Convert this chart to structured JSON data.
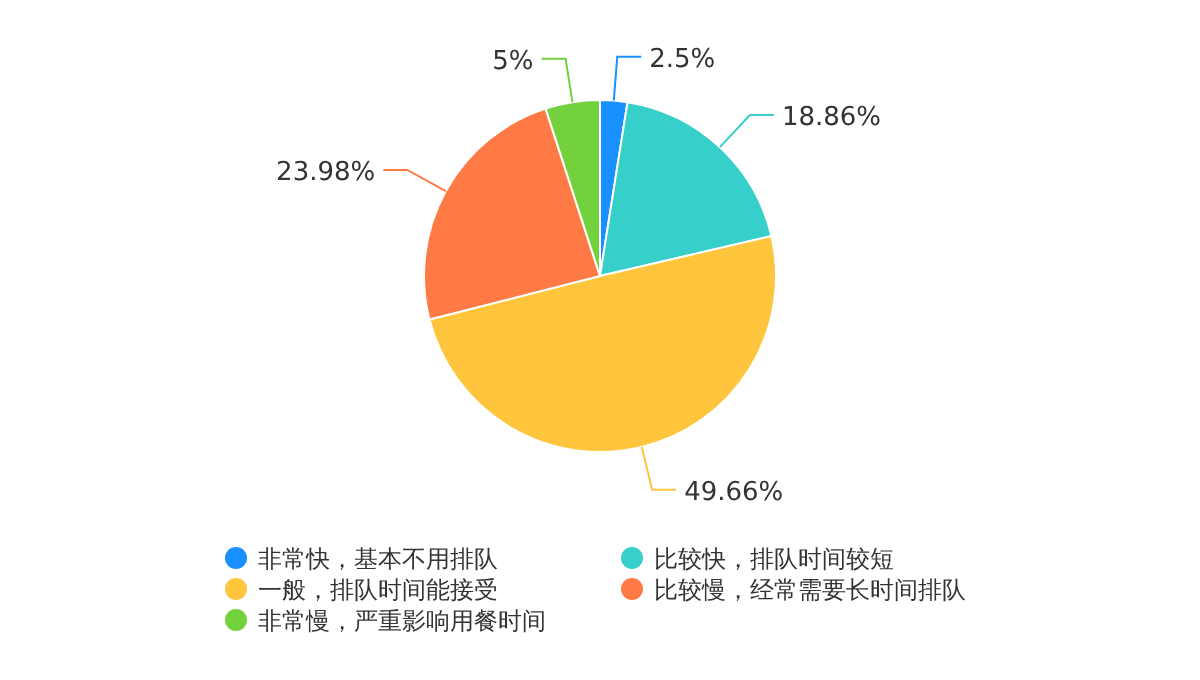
{
  "chart_data": {
    "type": "pie",
    "categories": [
      "非常快，基本不用排队",
      "比较快，排队时间较短",
      "一般，排队时间能接受",
      "比较慢，经常需要长时间排队",
      "非常慢，严重影响用餐时间"
    ],
    "values": [
      2.5,
      18.86,
      49.66,
      23.98,
      5
    ],
    "value_labels": [
      "2.5%",
      "18.86%",
      "49.66%",
      "23.98%",
      "5%"
    ],
    "colors": [
      "#1890ff",
      "#36cfc9",
      "#ffc53d",
      "#ff7a45",
      "#73d13d"
    ],
    "legend": "bottom"
  }
}
